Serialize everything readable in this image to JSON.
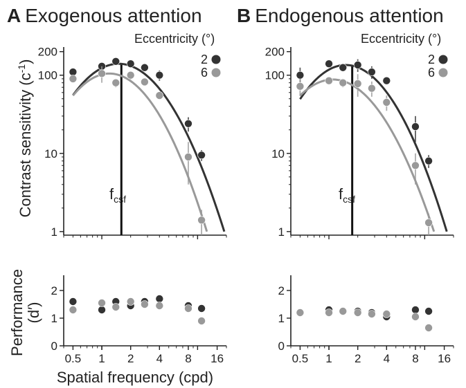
{
  "colors": {
    "ecc2": "#333333",
    "ecc6": "#999999",
    "axis": "#222222"
  },
  "y_axis_label": "Contrast sensitivity",
  "y_axis_unit": "(c",
  "y_axis_unit_sup": "-1",
  "y_axis_unit_close": ")",
  "perf_axis_label": "Performance",
  "perf_axis_label_2": "(d′)",
  "x_axis_label": "Spatial frequency (cpd)",
  "legend_title": "Eccentricity (°)",
  "fcsf_main": "f",
  "fcsf_sub": "csf",
  "chart_data": [
    {
      "id": "A",
      "panel_letter": "A",
      "title": "Exogenous attention",
      "type": "scatter",
      "xscale": "log",
      "yscale": "log",
      "xlim": [
        0.4,
        20
      ],
      "ylim": [
        0.9,
        220
      ],
      "yticks": [
        1,
        10,
        100,
        200
      ],
      "fcsf": 1.6,
      "series": [
        {
          "name": "2",
          "color": "#333333",
          "points": [
            [
              0.5,
              110
            ],
            [
              1,
              130
            ],
            [
              1.4,
              150
            ],
            [
              2,
              140
            ],
            [
              2.8,
              125
            ],
            [
              4,
              100
            ],
            [
              8,
              24
            ],
            [
              11,
              9.5
            ]
          ],
          "err": [
            8,
            12,
            10,
            10,
            10,
            15,
            5,
            1.5
          ],
          "curve": {
            "peak": 140,
            "fpeak": 1.5,
            "fmax": 19
          }
        },
        {
          "name": "6",
          "color": "#999999",
          "points": [
            [
              0.5,
              90
            ],
            [
              1,
              105
            ],
            [
              1.4,
              80
            ],
            [
              2,
              100
            ],
            [
              2.8,
              82
            ],
            [
              4,
              55
            ],
            [
              8,
              9
            ],
            [
              11,
              1.4
            ]
          ],
          "err": [
            8,
            25,
            10,
            12,
            8,
            6,
            5,
            0.5
          ],
          "curve": {
            "peak": 105,
            "fpeak": 1.2,
            "fmax": 12.5
          }
        }
      ]
    },
    {
      "id": "B",
      "panel_letter": "B",
      "title": "Endogenous attention",
      "type": "scatter",
      "xscale": "log",
      "yscale": "log",
      "xlim": [
        0.4,
        20
      ],
      "ylim": [
        0.9,
        220
      ],
      "yticks": [
        1,
        10,
        100,
        200
      ],
      "fcsf": 1.75,
      "series": [
        {
          "name": "2",
          "color": "#333333",
          "points": [
            [
              0.5,
              100
            ],
            [
              1,
              140
            ],
            [
              1.4,
              125
            ],
            [
              2,
              135
            ],
            [
              2.8,
              110
            ],
            [
              4,
              85
            ],
            [
              8,
              22
            ],
            [
              11,
              8
            ]
          ],
          "err": [
            25,
            10,
            10,
            25,
            20,
            8,
            8,
            1.5
          ],
          "curve": {
            "peak": 135,
            "fpeak": 1.5,
            "fmax": 17
          }
        },
        {
          "name": "6",
          "color": "#999999",
          "points": [
            [
              0.5,
              72
            ],
            [
              1,
              85
            ],
            [
              1.4,
              80
            ],
            [
              2,
              78
            ],
            [
              2.8,
              68
            ],
            [
              4,
              45
            ],
            [
              8,
              7
            ],
            [
              11,
              1.3
            ]
          ],
          "err": [
            18,
            8,
            10,
            25,
            15,
            10,
            3,
            0.4
          ],
          "curve": {
            "peak": 88,
            "fpeak": 1.1,
            "fmax": 12.5
          }
        }
      ]
    },
    {
      "id": "C",
      "type": "scatter",
      "xscale": "log",
      "xlim": [
        0.4,
        20
      ],
      "ylim": [
        0,
        2.5
      ],
      "yticks": [
        0,
        1,
        2
      ],
      "xticks": [
        0.5,
        1,
        2,
        4,
        8,
        16
      ],
      "xtick_labels": [
        "0.5",
        "1",
        "2",
        "4",
        "8",
        "16"
      ],
      "series": [
        {
          "name": "2",
          "color": "#333333",
          "points": [
            [
              0.5,
              1.6
            ],
            [
              1,
              1.3
            ],
            [
              1.4,
              1.6
            ],
            [
              2,
              1.45
            ],
            [
              2.8,
              1.6
            ],
            [
              4,
              1.7
            ],
            [
              8,
              1.45
            ],
            [
              11,
              1.35
            ]
          ]
        },
        {
          "name": "6",
          "color": "#999999",
          "points": [
            [
              0.5,
              1.3
            ],
            [
              1,
              1.55
            ],
            [
              1.4,
              1.4
            ],
            [
              2,
              1.6
            ],
            [
              2.8,
              1.5
            ],
            [
              4,
              1.45
            ],
            [
              8,
              1.35
            ],
            [
              11,
              0.9
            ]
          ]
        }
      ]
    },
    {
      "id": "D",
      "type": "scatter",
      "xscale": "log",
      "xlim": [
        0.4,
        20
      ],
      "ylim": [
        0,
        2.5
      ],
      "yticks": [
        0,
        1,
        2
      ],
      "xticks": [
        0.5,
        1,
        2,
        4,
        8,
        16
      ],
      "xtick_labels": [
        "0.5",
        "1",
        "2",
        "4",
        "8",
        "16"
      ],
      "series": [
        {
          "name": "2",
          "color": "#333333",
          "points": [
            [
              0.5,
              1.2
            ],
            [
              1,
              1.3
            ],
            [
              1.4,
              1.25
            ],
            [
              2,
              1.25
            ],
            [
              2.8,
              1.2
            ],
            [
              4,
              1.05
            ],
            [
              8,
              1.3
            ],
            [
              11,
              1.25
            ]
          ]
        },
        {
          "name": "6",
          "color": "#999999",
          "points": [
            [
              0.5,
              1.2
            ],
            [
              1,
              1.2
            ],
            [
              1.4,
              1.25
            ],
            [
              2,
              1.2
            ],
            [
              2.8,
              1.15
            ],
            [
              4,
              1.15
            ],
            [
              8,
              1.05
            ],
            [
              11,
              0.65
            ]
          ]
        }
      ]
    }
  ]
}
